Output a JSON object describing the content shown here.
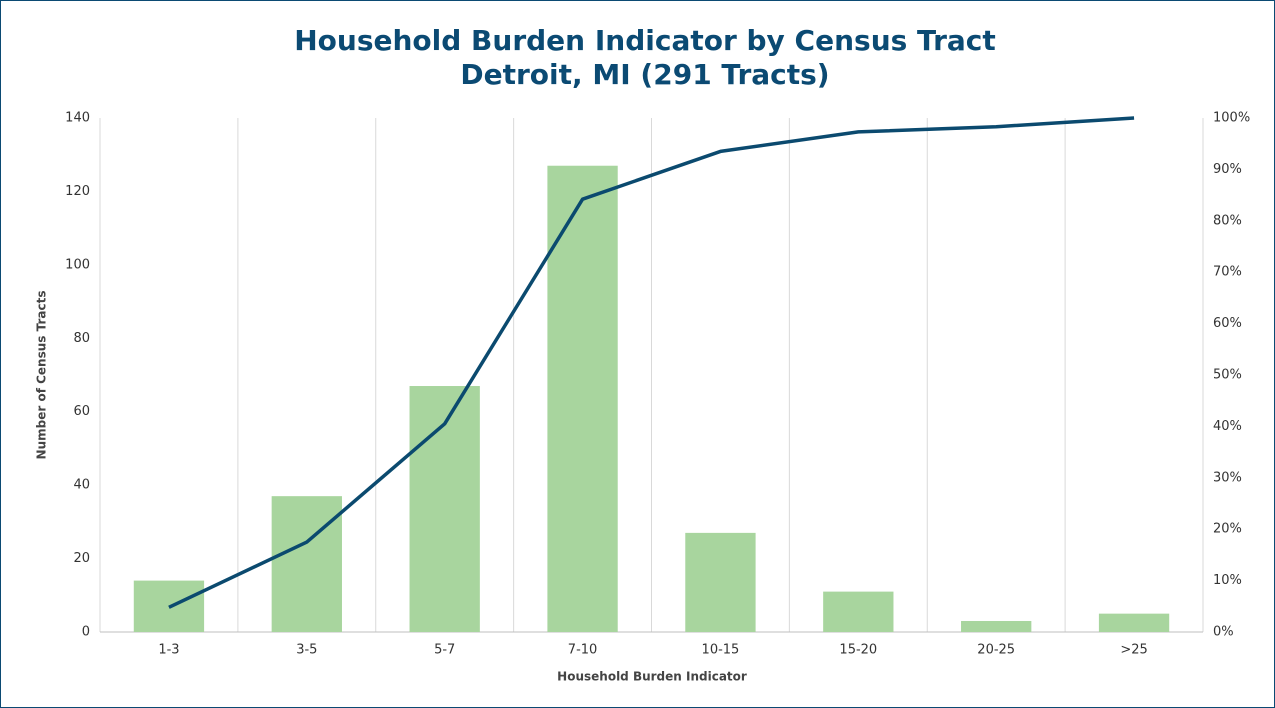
{
  "chart_data": {
    "type": "combo",
    "title": "Household Burden Indicator by Census Tract",
    "subtitle": "Detroit, MI (291 Tracts)",
    "x_label": "Household Burden Indicator",
    "y_label": "Number of Census Tracts",
    "categories": [
      "1-3",
      "3-5",
      "5-7",
      "7-10",
      "10-15",
      "15-20",
      "20-25",
      ">25"
    ],
    "series": [
      {
        "type": "bar",
        "color": "#a8d59e",
        "values": [
          14,
          37,
          67,
          127,
          27,
          11,
          3,
          5
        ]
      },
      {
        "type": "line",
        "axis": "y2",
        "color": "#0b4a6f",
        "values": [
          4.8,
          17.5,
          40.5,
          84.2,
          93.5,
          97.3,
          98.3,
          100
        ]
      }
    ],
    "ylim": [
      0,
      140
    ],
    "yticks": [
      0,
      20,
      40,
      60,
      80,
      100,
      120,
      140
    ],
    "y2lim": [
      0,
      100
    ],
    "y2ticks": [
      {
        "value": 0,
        "label": "0%"
      },
      {
        "value": 10,
        "label": "10%"
      },
      {
        "value": 20,
        "label": "20%"
      },
      {
        "value": 30,
        "label": "30%"
      },
      {
        "value": 40,
        "label": "40%"
      },
      {
        "value": 50,
        "label": "50%"
      },
      {
        "value": 60,
        "label": "60%"
      },
      {
        "value": 70,
        "label": "70%"
      },
      {
        "value": 80,
        "label": "80%"
      },
      {
        "value": 90,
        "label": "90%"
      },
      {
        "value": 100,
        "label": "100%"
      }
    ],
    "grid": "x"
  }
}
